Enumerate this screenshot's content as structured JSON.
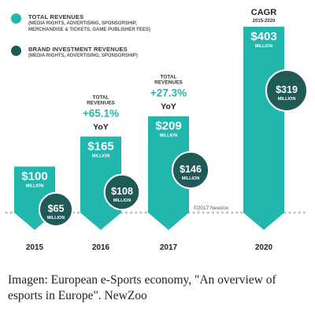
{
  "legend": {
    "items": [
      {
        "title": "TOTAL REVENUES",
        "subtitle": "(MEDIA RIGHTS, ADVERTISING, SPONSORSHIP,\nMERCHANDISE & TICKETS, GAME PUBLISHER FEES)",
        "color": "#21b7ad"
      },
      {
        "title": "BRAND INVESTMENT REVENUES",
        "subtitle": "(MEDIA RIGHTS, ADVERTISING, SPONSORSHIP)",
        "color": "#1f5a56"
      }
    ]
  },
  "chart_data": {
    "type": "bar",
    "categories": [
      "2015",
      "2016",
      "2017",
      "2020"
    ],
    "series": [
      {
        "name": "TOTAL REVENUES",
        "values": [
          100,
          165,
          209,
          403
        ],
        "labels": [
          "$100",
          "$165",
          "$209",
          "$403"
        ]
      },
      {
        "name": "BRAND INVESTMENT REVENUES",
        "values": [
          65,
          108,
          146,
          319
        ],
        "labels": [
          "$65",
          "$108",
          "$146",
          "$319"
        ]
      }
    ],
    "unit_label": "MILLION",
    "growth": [
      {
        "category": "2016",
        "top": "TOTAL",
        "top2": "REVENUES",
        "value": "+65.1%",
        "yoy": "YoY"
      },
      {
        "category": "2017",
        "top": "TOTAL",
        "top2": "REVENUES",
        "value": "+27.3%",
        "yoy": "YoY"
      }
    ],
    "cagr": {
      "category": "2020",
      "title": "CAGR",
      "range": "2015-2020"
    },
    "copyright": "©2017 Newzoo",
    "colors": {
      "total": "#21b7ad",
      "brand": "#1f5a56",
      "growth": "#21b7ad",
      "baseline": "#bfbfbf"
    }
  },
  "caption": "Imagen: European e-Sports economy, \"An overview of esports in Europe\". NewZoo"
}
